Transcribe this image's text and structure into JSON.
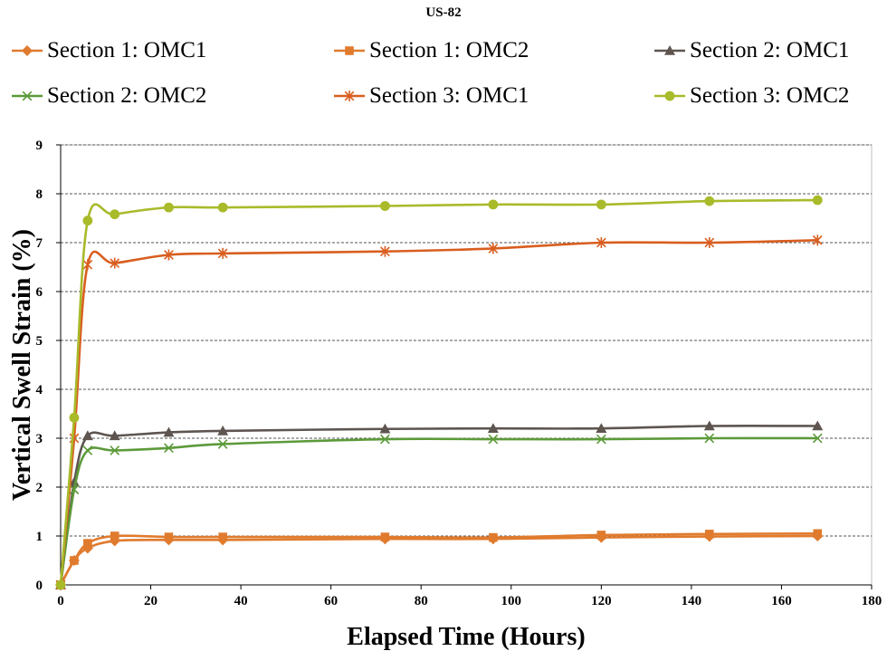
{
  "chart_data": {
    "type": "line",
    "title": "US-82",
    "xlabel": "Elapsed Time (Hours)",
    "ylabel": "Vertical Swell  Strain (%)",
    "xlim": [
      0,
      180
    ],
    "ylim": [
      0,
      9
    ],
    "xticks": [
      0,
      20,
      40,
      60,
      80,
      100,
      120,
      140,
      160,
      180
    ],
    "yticks": [
      0,
      1,
      2,
      3,
      4,
      5,
      6,
      7,
      8,
      9
    ],
    "grid": "horizontal dashed",
    "legend_position": "top",
    "x": [
      0,
      3,
      6,
      12,
      24,
      36,
      72,
      96,
      120,
      144,
      168
    ],
    "series": [
      {
        "name": "Section 1: OMC1",
        "marker": "diamond",
        "color": "#E07B2E",
        "values": [
          0,
          0.5,
          0.75,
          0.9,
          0.92,
          0.92,
          0.94,
          0.94,
          0.97,
          0.99,
          1.0
        ]
      },
      {
        "name": "Section 1: OMC2",
        "marker": "square",
        "color": "#E07B2E",
        "values": [
          0,
          0.5,
          0.85,
          1.0,
          0.98,
          0.98,
          0.98,
          0.97,
          1.02,
          1.04,
          1.05
        ]
      },
      {
        "name": "Section 2: OMC1",
        "marker": "triangle",
        "color": "#5E5550",
        "values": [
          0,
          2.1,
          3.05,
          3.05,
          3.12,
          3.15,
          3.19,
          3.2,
          3.2,
          3.25,
          3.25
        ]
      },
      {
        "name": "Section 2: OMC2",
        "marker": "x",
        "color": "#5C9A3A",
        "values": [
          0,
          1.95,
          2.75,
          2.75,
          2.8,
          2.88,
          2.98,
          2.98,
          2.98,
          3.0,
          3.0
        ]
      },
      {
        "name": "Section 3: OMC1",
        "marker": "asterisk",
        "color": "#D95E1F",
        "values": [
          0,
          3.0,
          6.55,
          6.58,
          6.75,
          6.78,
          6.82,
          6.88,
          7.0,
          7.0,
          7.05
        ]
      },
      {
        "name": "Section 3: OMC2",
        "marker": "circle",
        "color": "#A9BA2A",
        "values": [
          0,
          3.42,
          7.45,
          7.58,
          7.72,
          7.72,
          7.75,
          7.78,
          7.78,
          7.85,
          7.87
        ]
      }
    ]
  }
}
